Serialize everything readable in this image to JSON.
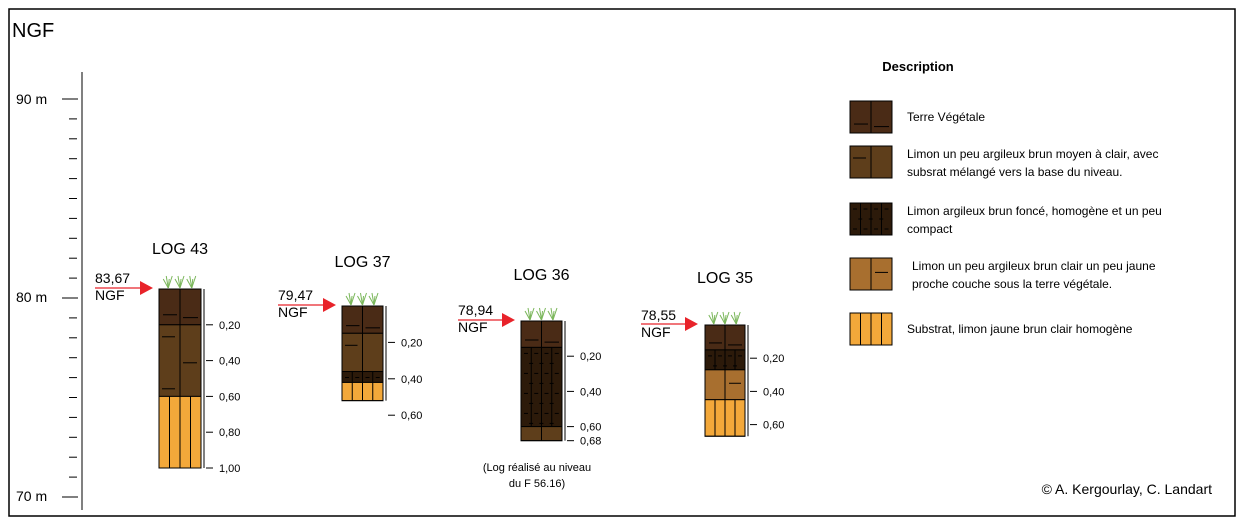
{
  "frame_title": "NGF",
  "scale": {
    "top_label": "90 m",
    "mid_label": "80 m",
    "bottom_label": "70 m"
  },
  "logs": [
    {
      "title": "LOG 43",
      "altitude": "83,67",
      "unit": "NGF",
      "layers": [
        {
          "type": "terre_vegetale",
          "depth_from": 0,
          "depth_to": 0.2
        },
        {
          "type": "limon_brun_moyen",
          "depth_from": 0.2,
          "depth_to": 0.6
        },
        {
          "type": "substrat",
          "depth_from": 0.6,
          "depth_to": 1.0
        }
      ],
      "ticks": [
        "0,20",
        "0,40",
        "0,60",
        "0,80",
        "1,00"
      ]
    },
    {
      "title": "LOG 37",
      "altitude": "79,47",
      "unit": "NGF",
      "layers": [
        {
          "type": "terre_vegetale",
          "depth_from": 0,
          "depth_to": 0.15
        },
        {
          "type": "limon_brun_moyen",
          "depth_from": 0.15,
          "depth_to": 0.36
        },
        {
          "type": "limon_brun_fonce",
          "depth_from": 0.36,
          "depth_to": 0.42
        },
        {
          "type": "substrat",
          "depth_from": 0.42,
          "depth_to": 0.52
        }
      ],
      "ticks": [
        "0,20",
        "0,40",
        "0,60"
      ]
    },
    {
      "title": "LOG 36",
      "altitude": "78,94",
      "unit": "NGF",
      "layers": [
        {
          "type": "terre_vegetale",
          "depth_from": 0,
          "depth_to": 0.15
        },
        {
          "type": "limon_brun_fonce",
          "depth_from": 0.15,
          "depth_to": 0.6
        },
        {
          "type": "limon_brun_moyen",
          "depth_from": 0.6,
          "depth_to": 0.68
        }
      ],
      "ticks": [
        "0,20",
        "0,40",
        "0,60",
        "0,68"
      ],
      "note_line1": "(Log réalisé au niveau",
      "note_line2": "du F 56.16)"
    },
    {
      "title": "LOG 35",
      "altitude": "78,55",
      "unit": "NGF",
      "layers": [
        {
          "type": "terre_vegetale",
          "depth_from": 0,
          "depth_to": 0.15
        },
        {
          "type": "limon_brun_fonce",
          "depth_from": 0.15,
          "depth_to": 0.27
        },
        {
          "type": "limon_brun_clair_jaune",
          "depth_from": 0.27,
          "depth_to": 0.45
        },
        {
          "type": "substrat",
          "depth_from": 0.45,
          "depth_to": 0.67
        }
      ],
      "ticks": [
        "0,20",
        "0,40",
        "0,60"
      ]
    }
  ],
  "legend": {
    "title": "Description",
    "items": [
      {
        "type": "terre_vegetale",
        "lines": [
          "Terre Végétale"
        ]
      },
      {
        "type": "limon_brun_moyen",
        "lines": [
          "Limon un peu argileux brun moyen à clair, avec",
          "subsrat mélangé vers la base du niveau."
        ]
      },
      {
        "type": "limon_brun_fonce",
        "lines": [
          "Limon argileux brun foncé, homogène et un peu",
          "compact"
        ]
      },
      {
        "type": "limon_brun_clair_jaune",
        "lines": [
          "Limon un peu argileux brun clair un peu jaune",
          "proche couche sous la terre végétale."
        ]
      },
      {
        "type": "substrat",
        "lines": [
          "Substrat, limon jaune brun clair homogène"
        ]
      }
    ]
  },
  "credit": "© A. Kergourlay, C. Landart",
  "colors": {
    "terre_vegetale": "#4a2b16",
    "limon_brun_moyen": "#5e3e1b",
    "limon_brun_fonce": "#2c1a0a",
    "limon_brun_clair_jaune": "#a86f2f",
    "substrat": "#f3a83a",
    "arrow": "#e8232a",
    "grass": "#7ab65a"
  }
}
